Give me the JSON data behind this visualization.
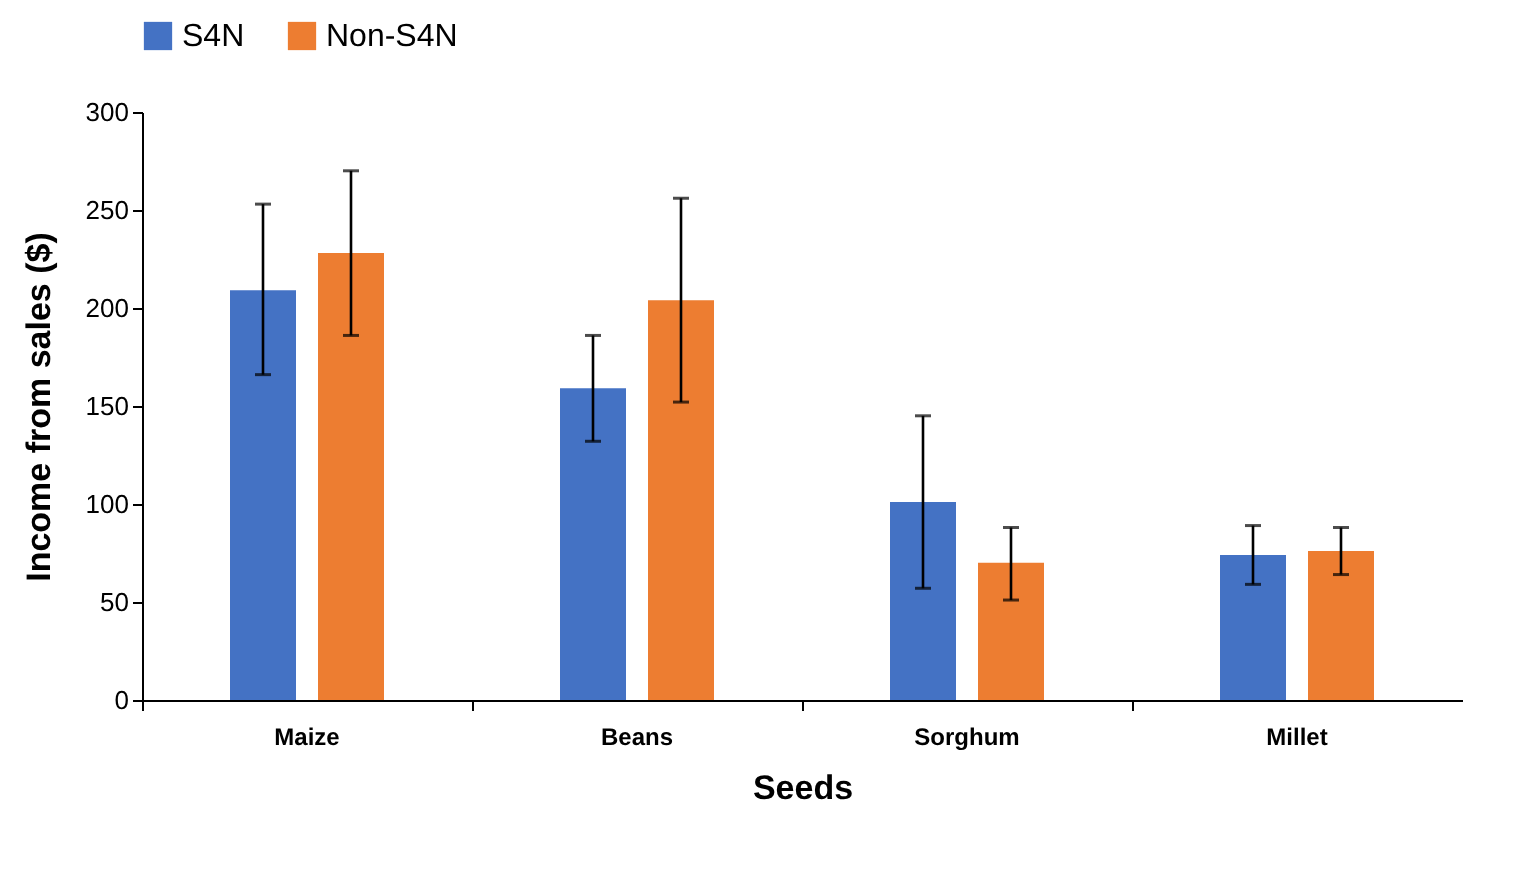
{
  "chart_data": {
    "type": "bar",
    "xlabel": "Seeds",
    "ylabel": "Income from sales ($)",
    "categories": [
      "Maize",
      "Beans",
      "Sorghum",
      "Millet"
    ],
    "series": [
      {
        "name": "S4N",
        "color": "#4472c4",
        "values": [
          209,
          159,
          101,
          74
        ],
        "errors": [
          [
            166,
            253
          ],
          [
            132,
            186
          ],
          [
            57,
            145
          ],
          [
            59,
            89
          ]
        ]
      },
      {
        "name": "Non-S4N",
        "color": "#ed7d31",
        "values": [
          228,
          204,
          70,
          76
        ],
        "errors": [
          [
            186,
            270
          ],
          [
            152,
            256
          ],
          [
            51,
            88
          ],
          [
            64,
            88
          ]
        ]
      }
    ],
    "ylim": [
      0,
      300
    ],
    "yticks": [
      0,
      50,
      100,
      150,
      200,
      250,
      300
    ],
    "grid": false,
    "legend": "top"
  }
}
